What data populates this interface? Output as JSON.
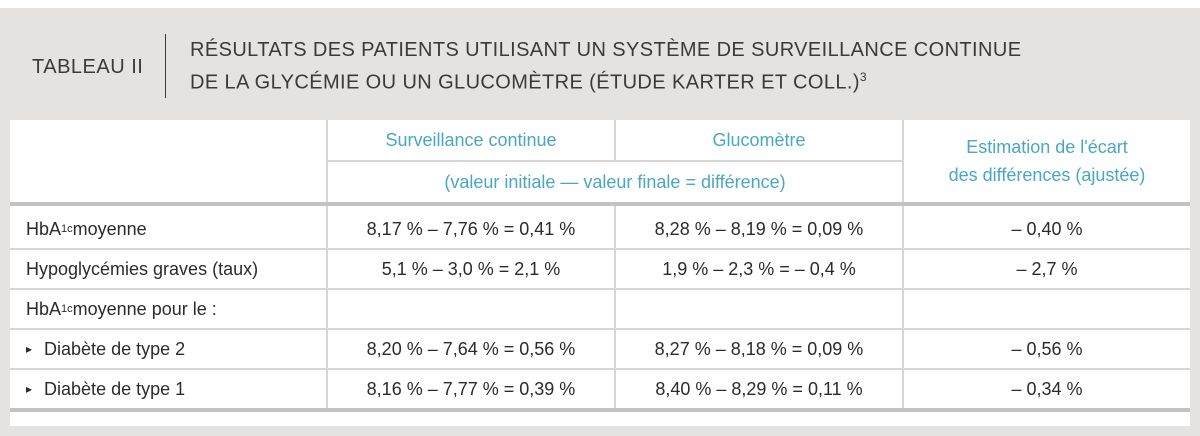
{
  "title": {
    "label": "TABLEAU II",
    "line1": "RÉSULTATS DES PATIENTS UTILISANT UN SYSTÈME DE SURVEILLANCE CONTINUE",
    "line2": "DE LA GLYCÉMIE OU UN GLUCOMÈTRE (ÉTUDE KARTER ET COLL.)",
    "ref": "3"
  },
  "headers": {
    "col1": "Surveillance continue",
    "col2": "Glucomètre",
    "span": "(valeur initiale — valeur finale = différence)",
    "col3_line1": "Estimation de l'écart",
    "col3_line2": "des différences (ajustée)"
  },
  "rows": [
    {
      "label_pre": "HbA",
      "label_sub": "1c",
      "label_post": " moyenne",
      "c1": "8,17 % – 7,76 % = 0,41 %",
      "c2": "8,28 % – 8,19 % = 0,09 %",
      "c3": "– 0,40 %"
    },
    {
      "label": "Hypoglycémies graves (taux)",
      "c1": "5,1 % – 3,0 % = 2,1 %",
      "c2": "1,9 % – 2,3 % = – 0,4 %",
      "c3": "– 2,7 %"
    },
    {
      "label_pre": "HbA",
      "label_sub": "1c",
      "label_post": " moyenne pour le :",
      "c1": "",
      "c2": "",
      "c3": ""
    },
    {
      "bullet": "▸",
      "label": "Diabète de type 2",
      "c1": "8,20 % – 7,64 % = 0,56 %",
      "c2": "8,27 % – 8,18 % = 0,09 %",
      "c3": "– 0,56 %"
    },
    {
      "bullet": "▸",
      "label": "Diabète de type 1",
      "c1": "8,16 % – 7,77 % = 0,39 %",
      "c2": "8,40 % – 8,29 % = 0,11 %",
      "c3": "– 0,34 %"
    }
  ]
}
